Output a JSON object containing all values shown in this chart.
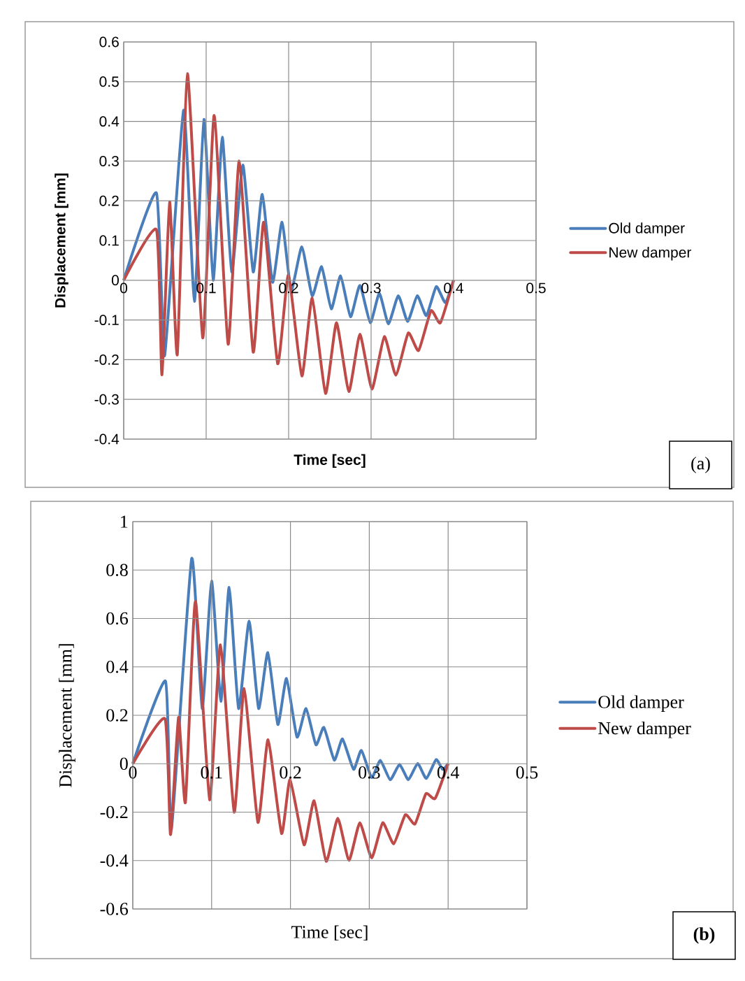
{
  "chart_data": [
    {
      "type": "line",
      "xlabel": "Time [sec]",
      "ylabel": "Displacement [mm]",
      "xlim": [
        0,
        0.5
      ],
      "xticks": [
        0,
        0.1,
        0.2,
        0.3,
        0.4,
        0.5
      ],
      "ylim": [
        -0.4,
        0.6
      ],
      "yticks": [
        -0.4,
        -0.3,
        -0.2,
        -0.1,
        0,
        0.1,
        0.2,
        0.3,
        0.4,
        0.5,
        0.6
      ],
      "grid": true,
      "legend": "right",
      "annotations": [
        "(a)"
      ],
      "series": [
        {
          "name": "Old damper",
          "color": "#4a7ebb",
          "x": [
            0,
            0.0397,
            0.0496,
            0.0726,
            0.0857,
            0.0973,
            0.1085,
            0.1195,
            0.131,
            0.1445,
            0.157,
            0.168,
            0.1805,
            0.192,
            0.203,
            0.216,
            0.2285,
            0.24,
            0.2517,
            0.263,
            0.275,
            0.2864,
            0.299,
            0.31,
            0.321,
            0.333,
            0.3443,
            0.356,
            0.367,
            0.379,
            0.39,
            0.4
          ],
          "values": [
            0,
            0.22,
            -0.19,
            0.428,
            -0.053,
            0.405,
            0.0,
            0.36,
            0.021,
            0.29,
            0.021,
            0.216,
            -0.005,
            0.146,
            -0.025,
            0.084,
            -0.039,
            0.034,
            -0.072,
            0.011,
            -0.092,
            -0.013,
            -0.107,
            -0.033,
            -0.11,
            -0.039,
            -0.104,
            -0.039,
            -0.089,
            -0.016,
            -0.056,
            0
          ]
        },
        {
          "name": "New damper",
          "color": "#be4b48",
          "x": [
            0,
            0.0397,
            0.0464,
            0.0557,
            0.065,
            0.0773,
            0.0958,
            0.1097,
            0.1266,
            0.14,
            0.157,
            0.1697,
            0.1867,
            0.1997,
            0.216,
            0.2286,
            0.2447,
            0.258,
            0.273,
            0.2864,
            0.301,
            0.316,
            0.33,
            0.345,
            0.3576,
            0.3726,
            0.384,
            0.4
          ],
          "values": [
            0,
            0.127,
            -0.238,
            0.197,
            -0.187,
            0.52,
            -0.145,
            0.415,
            -0.161,
            0.3,
            -0.181,
            0.146,
            -0.21,
            0.013,
            -0.241,
            -0.045,
            -0.285,
            -0.107,
            -0.28,
            -0.136,
            -0.274,
            -0.142,
            -0.239,
            -0.133,
            -0.177,
            -0.077,
            -0.107,
            0
          ]
        }
      ]
    },
    {
      "type": "line",
      "xlabel": "Time [sec]",
      "ylabel": "Displacement [mm]",
      "xlim": [
        0,
        0.5
      ],
      "xticks": [
        0,
        0.1,
        0.2,
        0.3,
        0.4,
        0.5
      ],
      "ylim": [
        -0.6,
        1
      ],
      "yticks": [
        -0.6,
        -0.4,
        -0.2,
        0,
        0.2,
        0.4,
        0.6,
        0.8,
        1
      ],
      "grid": true,
      "legend": "right",
      "annotations": [
        "(b)"
      ],
      "series": [
        {
          "name": "Old damper",
          "color": "#4a7ebb",
          "x": [
            0,
            0.0415,
            0.049,
            0.0747,
            0.088,
            0.1,
            0.1117,
            0.1222,
            0.1342,
            0.1475,
            0.1596,
            0.1713,
            0.184,
            0.195,
            0.2083,
            0.2198,
            0.2323,
            0.2424,
            0.2556,
            0.266,
            0.28,
            0.29,
            0.303,
            0.314,
            0.3265,
            0.3384,
            0.3496,
            0.3614,
            0.3723,
            0.3848,
            0.393,
            0.4
          ],
          "values": [
            0,
            0.341,
            -0.27,
            0.847,
            0.228,
            0.754,
            0.258,
            0.728,
            0.228,
            0.589,
            0.228,
            0.459,
            0.162,
            0.352,
            0.11,
            0.228,
            0.078,
            0.15,
            0.015,
            0.102,
            -0.023,
            0.055,
            -0.057,
            0.014,
            -0.066,
            -0.003,
            -0.066,
            0.001,
            -0.061,
            0.017,
            -0.023,
            0
          ]
        },
        {
          "name": "New damper",
          "color": "#be4b48",
          "x": [
            0,
            0.0408,
            0.0479,
            0.058,
            0.0668,
            0.0794,
            0.0975,
            0.1112,
            0.1286,
            0.1412,
            0.1587,
            0.1716,
            0.1887,
            0.1995,
            0.2172,
            0.23,
            0.2453,
            0.26,
            0.2742,
            0.288,
            0.303,
            0.317,
            0.331,
            0.3457,
            0.358,
            0.3718,
            0.3836,
            0.4
          ],
          "values": [
            0,
            0.186,
            -0.293,
            0.191,
            -0.159,
            0.671,
            -0.149,
            0.491,
            -0.2,
            0.31,
            -0.242,
            0.099,
            -0.288,
            -0.066,
            -0.335,
            -0.153,
            -0.403,
            -0.225,
            -0.399,
            -0.244,
            -0.389,
            -0.244,
            -0.331,
            -0.211,
            -0.249,
            -0.124,
            -0.143,
            0
          ]
        }
      ]
    }
  ]
}
